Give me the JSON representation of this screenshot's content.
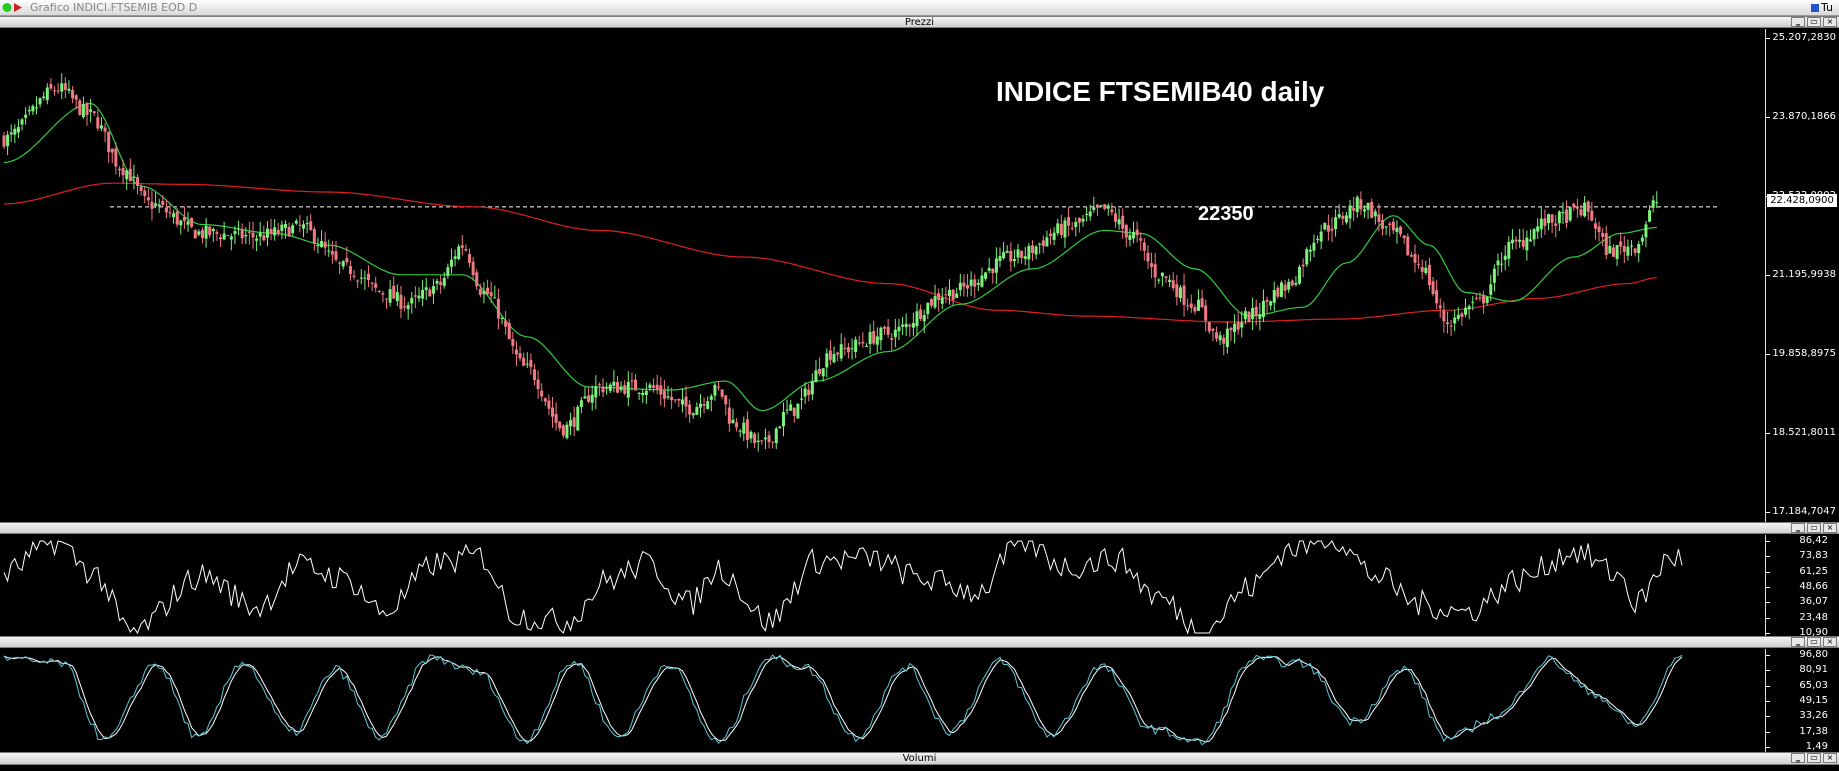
{
  "window": {
    "title": "Grafico INDICI.FTSEMIB EOD D",
    "corner_label": "Tu",
    "minimize_glyph": "‗",
    "restore_glyph": "▭",
    "close_glyph": "×"
  },
  "panes": {
    "prices_label": "Prezzi",
    "osc1_label": "",
    "osc2_label": "",
    "volume_label": "Volumi"
  },
  "annotations": {
    "title": "INDICE FTSEMIB40 daily",
    "level_label": "22350",
    "last_price": "22.428,0900"
  },
  "colors": {
    "candle_up": "#7cf27c",
    "candle_down": "#f07a84",
    "sma_short": "#2ecc40",
    "sma_long": "#e0201e",
    "oscillator": "#ffffff",
    "stoch_fast": "#5bc7d6",
    "stoch_slow": "#ffffff",
    "level_line": "#ffffff"
  },
  "chart_data": [
    {
      "type": "candlestick",
      "title": "INDICE FTSEMIB40 daily",
      "ylim": [
        17184.7047,
        25207.283
      ],
      "y_ticks": [
        "25.207,2830",
        "23.870,1866",
        "22.532,0902",
        "21.195,9938",
        "19.858,8975",
        "18.521,8011",
        "17.184,7047"
      ],
      "y_tick_values": [
        25207.283,
        23870.1866,
        22532.0902,
        21195.9938,
        19858.8975,
        18521.8011,
        17184.7047
      ],
      "horizontal_level": 22350,
      "last_close": 22428.09,
      "close_keypoints": [
        [
          0,
          23500
        ],
        [
          15,
          24350
        ],
        [
          24,
          23900
        ],
        [
          33,
          23000
        ],
        [
          40,
          22400
        ],
        [
          55,
          21900
        ],
        [
          70,
          21850
        ],
        [
          82,
          22000
        ],
        [
          95,
          21300
        ],
        [
          105,
          20900
        ],
        [
          112,
          20700
        ],
        [
          120,
          21000
        ],
        [
          127,
          21700
        ],
        [
          133,
          20900
        ],
        [
          145,
          19600
        ],
        [
          155,
          18600
        ],
        [
          165,
          19300
        ],
        [
          178,
          19300
        ],
        [
          190,
          18950
        ],
        [
          198,
          19250
        ],
        [
          202,
          18700
        ],
        [
          210,
          18300
        ],
        [
          218,
          18900
        ],
        [
          230,
          19900
        ],
        [
          245,
          20200
        ],
        [
          262,
          20900
        ],
        [
          280,
          21500
        ],
        [
          295,
          22000
        ],
        [
          305,
          22300
        ],
        [
          312,
          21900
        ],
        [
          320,
          21200
        ],
        [
          330,
          20700
        ],
        [
          337,
          20100
        ],
        [
          345,
          20500
        ],
        [
          355,
          21000
        ],
        [
          366,
          22000
        ],
        [
          376,
          22400
        ],
        [
          385,
          21900
        ],
        [
          392,
          21400
        ],
        [
          400,
          20400
        ],
        [
          408,
          20700
        ],
        [
          418,
          21700
        ],
        [
          428,
          22100
        ],
        [
          438,
          22300
        ],
        [
          445,
          21600
        ],
        [
          452,
          21700
        ],
        [
          458,
          22428
        ]
      ],
      "sma_short_keypoints": [
        [
          0,
          23100
        ],
        [
          24,
          24100
        ],
        [
          38,
          22700
        ],
        [
          55,
          22050
        ],
        [
          75,
          21900
        ],
        [
          90,
          21700
        ],
        [
          110,
          21200
        ],
        [
          127,
          21200
        ],
        [
          145,
          20150
        ],
        [
          162,
          19300
        ],
        [
          185,
          19250
        ],
        [
          200,
          19400
        ],
        [
          210,
          18900
        ],
        [
          225,
          19400
        ],
        [
          245,
          19900
        ],
        [
          265,
          20700
        ],
        [
          285,
          21300
        ],
        [
          305,
          21950
        ],
        [
          315,
          21900
        ],
        [
          330,
          21300
        ],
        [
          345,
          20500
        ],
        [
          360,
          20650
        ],
        [
          372,
          21400
        ],
        [
          385,
          22200
        ],
        [
          395,
          21700
        ],
        [
          405,
          20900
        ],
        [
          418,
          20750
        ],
        [
          435,
          21500
        ],
        [
          448,
          21900
        ],
        [
          458,
          22000
        ]
      ],
      "sma_long_keypoints": [
        [
          0,
          22400
        ],
        [
          30,
          22750
        ],
        [
          50,
          22730
        ],
        [
          90,
          22600
        ],
        [
          130,
          22350
        ],
        [
          165,
          21950
        ],
        [
          205,
          21500
        ],
        [
          245,
          21050
        ],
        [
          275,
          20600
        ],
        [
          300,
          20500
        ],
        [
          340,
          20400
        ],
        [
          370,
          20450
        ],
        [
          400,
          20600
        ],
        [
          425,
          20800
        ],
        [
          450,
          21050
        ],
        [
          458,
          21150
        ]
      ]
    },
    {
      "type": "line",
      "series": [
        {
          "values": []
        }
      ],
      "ylim": [
        10.9,
        86.42
      ],
      "y_ticks": [
        "86,42",
        "73,83",
        "61,25",
        "48,66",
        "36,07",
        "23,48",
        "10,90"
      ],
      "y_tick_values": [
        86.42,
        73.83,
        61.25,
        48.66,
        36.07,
        23.48,
        10.9
      ],
      "series_keypoints": [
        [
          0,
          60
        ],
        [
          14,
          86
        ],
        [
          25,
          60
        ],
        [
          35,
          11
        ],
        [
          55,
          58
        ],
        [
          70,
          32
        ],
        [
          82,
          66
        ],
        [
          95,
          55
        ],
        [
          105,
          28
        ],
        [
          120,
          68
        ],
        [
          132,
          74
        ],
        [
          142,
          25
        ],
        [
          155,
          20
        ],
        [
          168,
          55
        ],
        [
          178,
          68
        ],
        [
          190,
          35
        ],
        [
          198,
          64
        ],
        [
          212,
          20
        ],
        [
          225,
          70
        ],
        [
          240,
          72
        ],
        [
          255,
          55
        ],
        [
          270,
          45
        ],
        [
          282,
          86
        ],
        [
          295,
          65
        ],
        [
          308,
          72
        ],
        [
          320,
          40
        ],
        [
          332,
          12
        ],
        [
          345,
          48
        ],
        [
          356,
          80
        ],
        [
          368,
          90
        ],
        [
          380,
          58
        ],
        [
          392,
          35
        ],
        [
          405,
          28
        ],
        [
          420,
          55
        ],
        [
          435,
          78
        ],
        [
          448,
          58
        ],
        [
          452,
          35
        ],
        [
          462,
          73
        ]
      ]
    },
    {
      "type": "line",
      "ylim": [
        1.49,
        96.8
      ],
      "y_ticks": [
        "96,80",
        "80,91",
        "65,03",
        "49,15",
        "33,26",
        "17,38",
        "1,49"
      ],
      "y_tick_values": [
        96.8,
        80.91,
        65.03,
        49.15,
        33.26,
        17.38,
        1.49
      ],
      "series_keypoints": [
        [
          0,
          92
        ],
        [
          16,
          88
        ],
        [
          28,
          8
        ],
        [
          42,
          88
        ],
        [
          54,
          10
        ],
        [
          66,
          90
        ],
        [
          80,
          16
        ],
        [
          92,
          82
        ],
        [
          104,
          12
        ],
        [
          118,
          94
        ],
        [
          132,
          78
        ],
        [
          144,
          8
        ],
        [
          158,
          90
        ],
        [
          170,
          12
        ],
        [
          184,
          88
        ],
        [
          198,
          6
        ],
        [
          212,
          94
        ],
        [
          222,
          84
        ],
        [
          236,
          12
        ],
        [
          250,
          85
        ],
        [
          262,
          18
        ],
        [
          276,
          90
        ],
        [
          290,
          14
        ],
        [
          304,
          85
        ],
        [
          318,
          20
        ],
        [
          332,
          6
        ],
        [
          346,
          92
        ],
        [
          360,
          88
        ],
        [
          374,
          28
        ],
        [
          388,
          82
        ],
        [
          400,
          10
        ],
        [
          414,
          34
        ],
        [
          428,
          92
        ],
        [
          440,
          58
        ],
        [
          452,
          24
        ],
        [
          465,
          96
        ]
      ]
    }
  ]
}
